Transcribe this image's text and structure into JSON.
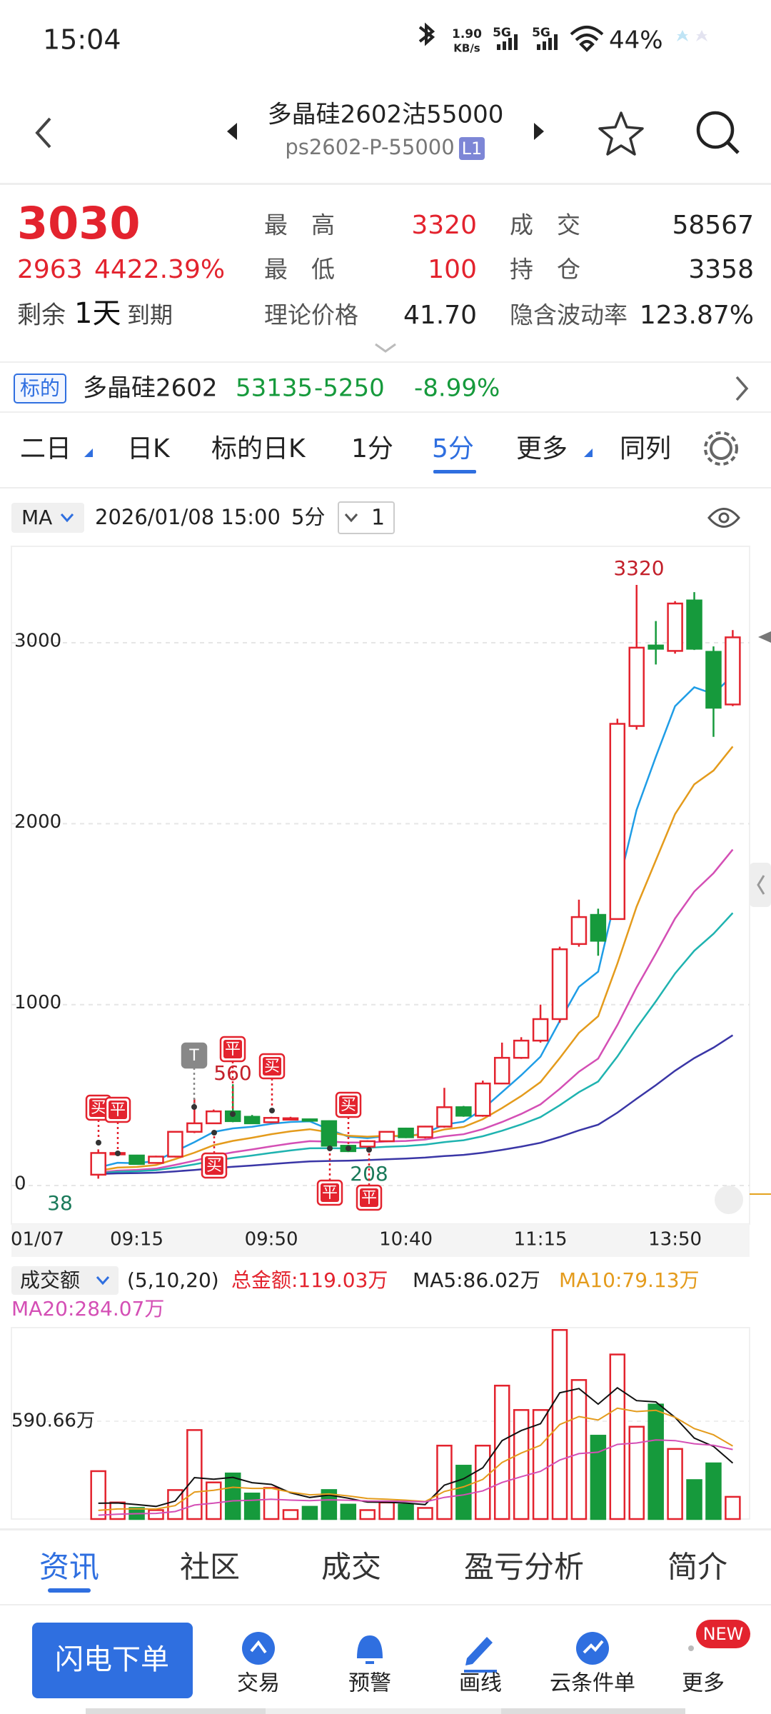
{
  "status_bar": {
    "time": "15:04",
    "speed": "1.90",
    "speed_unit": "KB/s",
    "network": [
      "5G",
      "5G"
    ],
    "battery": "44%"
  },
  "header": {
    "title": "多晶硅2602沽55000",
    "subtitle": "ps2602-P-55000",
    "badge": "L1"
  },
  "quote": {
    "price": "3030",
    "change": "2963",
    "change_pct": "4422.39%",
    "remaining": {
      "prefix": "剩余",
      "days": "1天",
      "suffix": "到期"
    },
    "stats": [
      {
        "label": "最　高",
        "value": "3320"
      },
      {
        "label": "最　低",
        "value": "100"
      },
      {
        "label": "理论价格",
        "value": "41.70"
      },
      {
        "label": "成　交",
        "value": "58567"
      },
      {
        "label": "持　仓",
        "value": "3358"
      },
      {
        "label": "隐含波动率",
        "value": "123.87%"
      }
    ]
  },
  "underlying": {
    "tag": "标的",
    "name": "多晶硅2602",
    "price": "53135",
    "change": "-5250",
    "change_pct": "-8.99%"
  },
  "tabs": {
    "items": [
      "二日",
      "日K",
      "标的日K",
      "1分",
      "5分",
      "更多",
      "同列"
    ],
    "active": 4
  },
  "chart_toolbar": {
    "indicator": "MA",
    "datetime": "2026/01/08 15:00",
    "period": "5分",
    "count": "1"
  },
  "chart_data": {
    "type": "candlestick",
    "date_label": "01/07",
    "categories": [
      null,
      null,
      "09:15",
      null,
      null,
      null,
      null,
      null,
      null,
      "09:50",
      null,
      null,
      null,
      null,
      null,
      null,
      "10:40",
      null,
      null,
      null,
      null,
      null,
      null,
      "11:15",
      null,
      null,
      null,
      null,
      null,
      null,
      "13:50",
      null,
      null,
      null
    ],
    "open": [
      60,
      175,
      166,
      125,
      160,
      297,
      344,
      410,
      380,
      350,
      368,
      366,
      356,
      220,
      215,
      245,
      315,
      267,
      326,
      433,
      386,
      564,
      706,
      801,
      920,
      1335,
      1496,
      1473,
      2540,
      2985,
      2955,
      3234,
      2950,
      2659
    ],
    "high": [
      200,
      185,
      170,
      165,
      300,
      480,
      420,
      560,
      390,
      380,
      380,
      370,
      360,
      225,
      250,
      300,
      320,
      330,
      540,
      440,
      580,
      790,
      820,
      1000,
      1320,
      1580,
      1530,
      2580,
      3320,
      3120,
      3230,
      3280,
      2980,
      3070
    ],
    "low": [
      38,
      170,
      115,
      120,
      155,
      290,
      340,
      350,
      340,
      345,
      360,
      355,
      215,
      185,
      208,
      240,
      262,
      260,
      320,
      380,
      380,
      560,
      700,
      790,
      900,
      1320,
      1270,
      1470,
      2520,
      2880,
      2940,
      2960,
      2480,
      2650
    ],
    "close": [
      180,
      180,
      119,
      160,
      297,
      344,
      410,
      356,
      344,
      374,
      372,
      362,
      220,
      190,
      245,
      297,
      267,
      326,
      433,
      386,
      564,
      706,
      801,
      920,
      1306,
      1484,
      1353,
      2552,
      2973,
      2967,
      3217,
      2967,
      2641,
      3030
    ],
    "ylim": [
      -213,
      3533
    ],
    "yticks": [
      0,
      1000,
      2000,
      3000
    ],
    "grid": true,
    "annotations": [
      3320,
      560,
      208,
      38
    ],
    "trade_markers": [
      "买",
      "平",
      "T",
      "平",
      "买",
      "买",
      "平",
      "买",
      "平"
    ],
    "up_color": "#e3232e",
    "down_color": "#169a3c",
    "ma_colors": [
      "#1f9de6",
      "#e49b1c",
      "#d44fb5",
      "#1fb3b0",
      "#3a36a6"
    ]
  },
  "volume": {
    "selector": "成交额",
    "params": "(5,10,20)",
    "total": "总金额:119.03万",
    "ma5": "MA5:86.02万",
    "ma10": "MA10:79.13万",
    "ma20": "MA20:284.07万",
    "values": [
      289,
      100,
      67,
      54,
      175,
      537,
      221,
      275,
      154,
      188,
      54,
      74,
      175,
      87,
      54,
      100,
      87,
      67,
      443,
      322,
      443,
      805,
      658,
      658,
      1141,
      839,
      503,
      993,
      557,
      691,
      423,
      235,
      336,
      134
    ],
    "ylim": [
      0,
      1155
    ],
    "yticks": [
      {
        "value": 590.66,
        "label": "590.66万"
      }
    ],
    "ma_colors": [
      "#111111",
      "#e49b1c",
      "#d44fb5"
    ]
  },
  "bottom_tabs": {
    "items": [
      "资讯",
      "社区",
      "成交",
      "盈亏分析",
      "简介"
    ],
    "active": 0
  },
  "nav": {
    "button": "闪电下单",
    "items": [
      "交易",
      "预警",
      "画线",
      "云条件单",
      "更多"
    ],
    "badge": "NEW"
  }
}
